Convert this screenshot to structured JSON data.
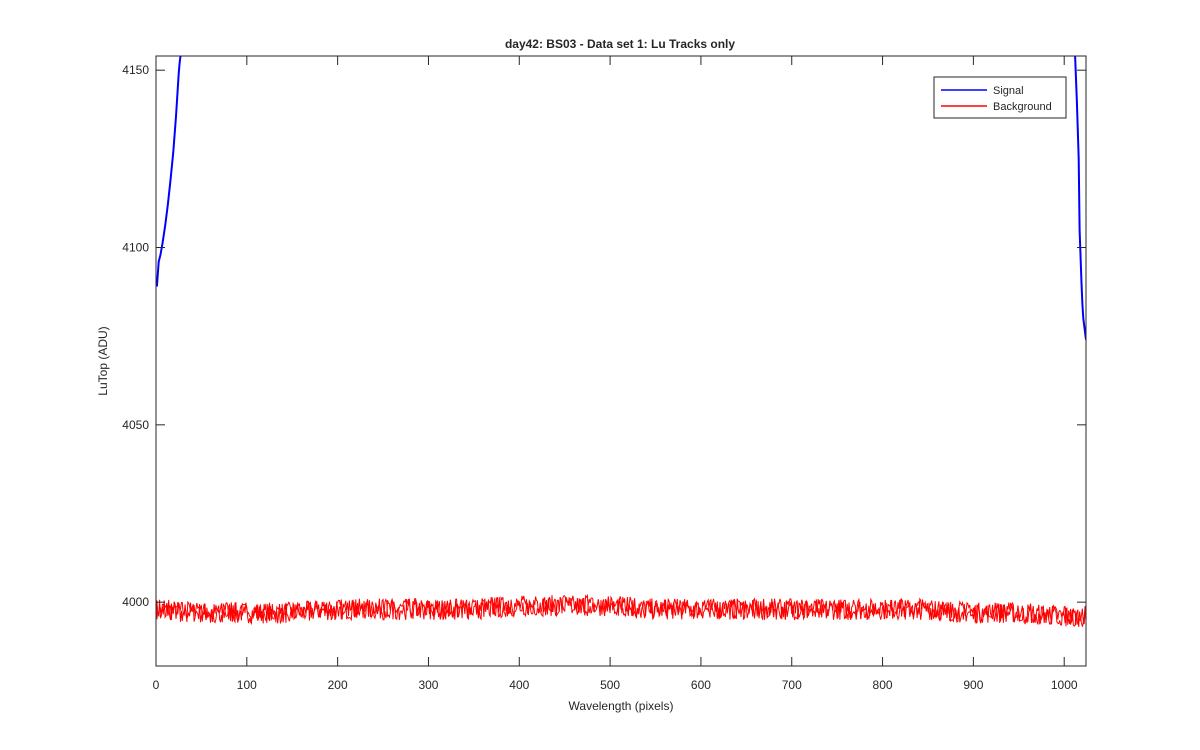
{
  "chart_data": {
    "type": "line",
    "title": "day42: BS03 - Data set 1: Lu Tracks only",
    "xlabel": "Wavelength (pixels)",
    "ylabel": "LuTop (ADU)",
    "xlim": [
      0,
      1024
    ],
    "ylim": [
      3982,
      4154
    ],
    "xticks": [
      0,
      100,
      200,
      300,
      400,
      500,
      600,
      700,
      800,
      900,
      1000
    ],
    "yticks": [
      4000,
      4050,
      4100,
      4150
    ],
    "grid": false,
    "legend": {
      "position": "top-right",
      "entries": [
        "Signal",
        "Background"
      ]
    },
    "colors": {
      "Signal": "#0000ff",
      "Background": "#ff0000"
    },
    "series": [
      {
        "name": "Signal",
        "segments": [
          {
            "x": [
              1,
              3,
              5,
              7,
              10,
              13,
              16,
              19,
              22,
              24,
              25,
              26,
              27
            ],
            "y": [
              4089,
              4096,
              4098,
              4101,
              4106,
              4112,
              4119,
              4127,
              4137,
              4145,
              4149,
              4152,
              4154
            ]
          },
          {
            "x": [
              1012,
              1014,
              1016,
              1017,
              1019,
              1020,
              1021,
              1022,
              1024
            ],
            "y": [
              4154,
              4141,
              4125,
              4105,
              4090,
              4084,
              4080,
              4078,
              4074
            ]
          }
        ]
      },
      {
        "name": "Background",
        "x": [
          0,
          50,
          100,
          150,
          200,
          250,
          300,
          350,
          400,
          450,
          500,
          550,
          600,
          650,
          700,
          750,
          800,
          850,
          900,
          950,
          1000,
          1024
        ],
        "y": [
          3998,
          3997,
          3997,
          3997,
          3998,
          3998,
          3998,
          3998,
          3999,
          3999,
          3999,
          3998,
          3998,
          3998,
          3998,
          3998,
          3998,
          3998,
          3997,
          3997,
          3996,
          3996
        ],
        "noise_amplitude": 3
      }
    ]
  }
}
